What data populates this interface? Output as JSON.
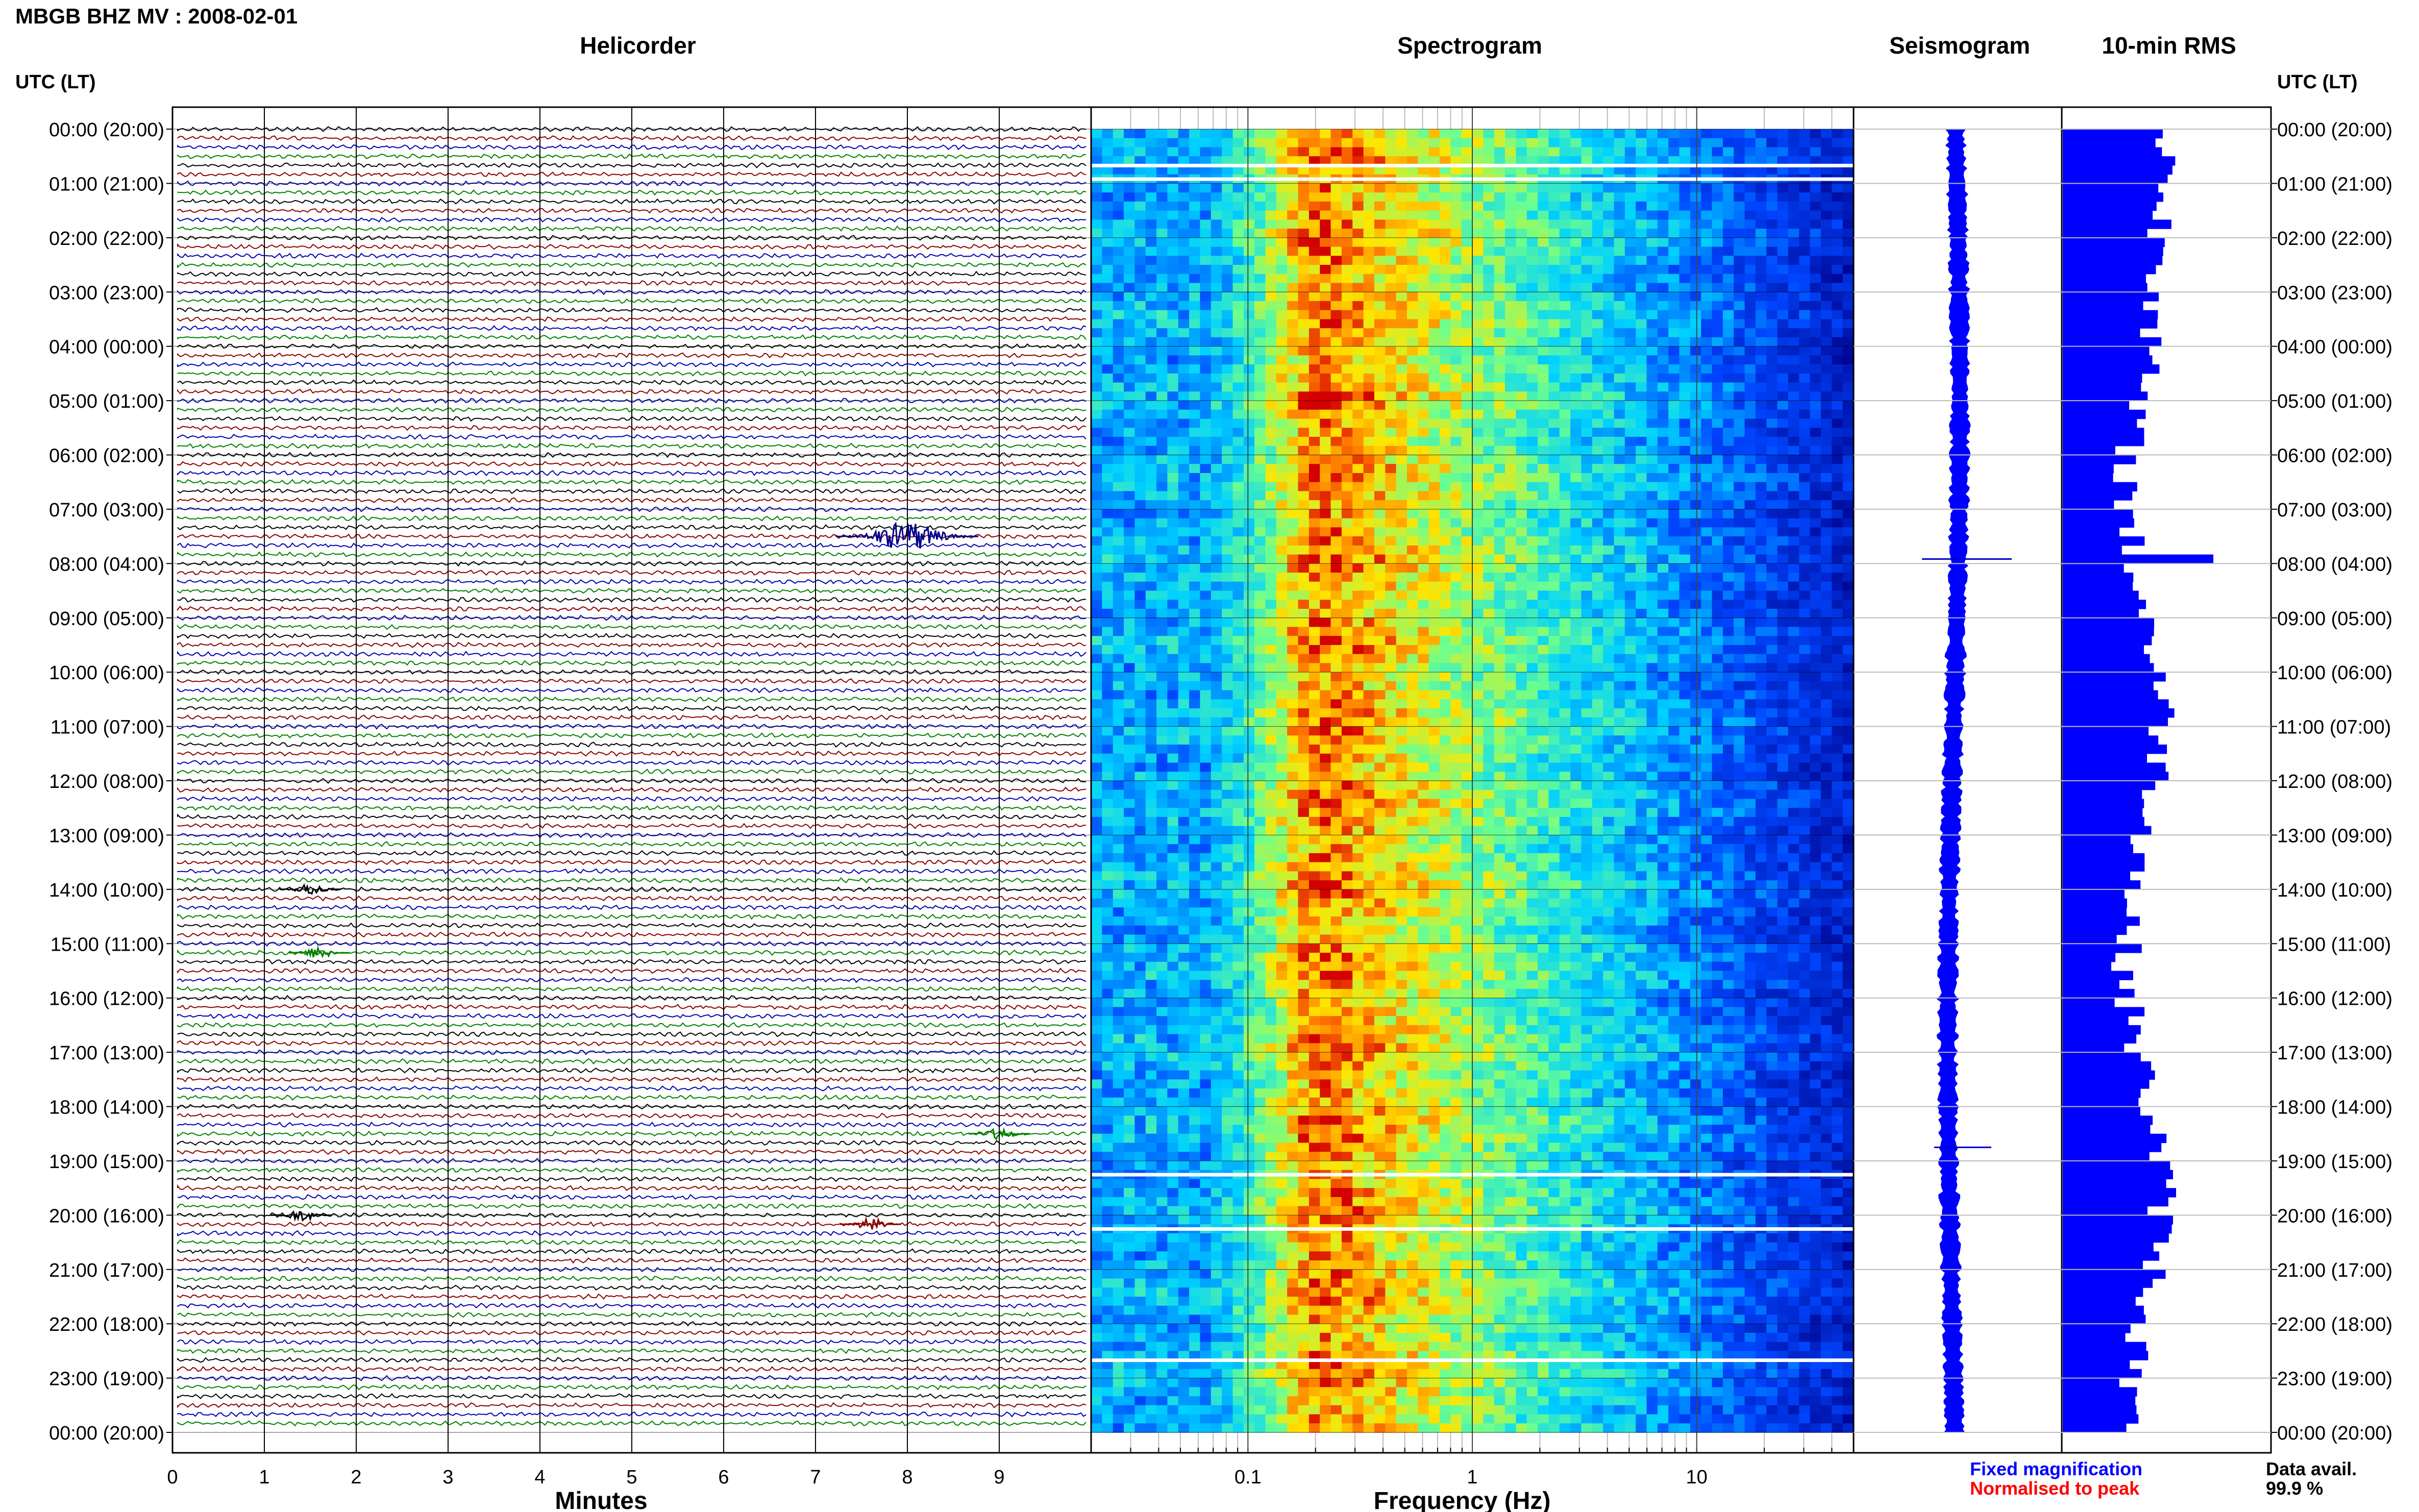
{
  "title": "MBGB BHZ MV : 2008-02-01",
  "chart_data": [
    {
      "type": "line",
      "title": "Helicorder",
      "xlabel": "Minutes",
      "ylabel": "UTC (LT)",
      "x_ticks": [
        "0",
        "1",
        "2",
        "3",
        "4",
        "5",
        "6",
        "7",
        "8",
        "9"
      ],
      "xlim": [
        0,
        10
      ],
      "row_minutes": 10,
      "trace_colors": [
        "#000000",
        "#8b0000",
        "#0000b4",
        "#008000"
      ],
      "events": [
        {
          "time_utc": "07:30",
          "minute": 8.0,
          "description_color": "#00008b"
        },
        {
          "time_utc": "14:00",
          "minute": 1.5
        },
        {
          "time_utc": "15:10",
          "minute": 1.6
        },
        {
          "time_utc": "18:30",
          "minute": 9.0
        },
        {
          "time_utc": "20:10",
          "minute": 7.6
        },
        {
          "time_utc": "20:00",
          "minute": 1.4
        }
      ]
    },
    {
      "type": "heatmap",
      "title": "Spectrogram",
      "xlabel": "Frequency (Hz)",
      "x_scale": "log",
      "xlim": [
        0.02,
        50
      ],
      "x_ticks": [
        "0.1",
        "1",
        "10"
      ],
      "peak_band_hz": [
        0.15,
        0.35
      ],
      "gaps_utc": [
        "00:40",
        "00:55",
        "19:15",
        "20:15",
        "22:40"
      ]
    },
    {
      "type": "line",
      "title": "Seismogram",
      "events_utc": [
        "07:55",
        "18:45"
      ]
    },
    {
      "type": "bar",
      "title": "10-min RMS",
      "orientation": "horizontal",
      "peak_utc": "07:50"
    }
  ],
  "y_ticks": [
    "00:00 (20:00)",
    "01:00 (21:00)",
    "02:00 (22:00)",
    "03:00 (23:00)",
    "04:00 (00:00)",
    "05:00 (01:00)",
    "06:00 (02:00)",
    "07:00 (03:00)",
    "08:00 (04:00)",
    "09:00 (05:00)",
    "10:00 (06:00)",
    "11:00 (07:00)",
    "12:00 (08:00)",
    "13:00 (09:00)",
    "14:00 (10:00)",
    "15:00 (11:00)",
    "16:00 (12:00)",
    "17:00 (13:00)",
    "18:00 (14:00)",
    "19:00 (15:00)",
    "20:00 (16:00)",
    "21:00 (17:00)",
    "22:00 (18:00)",
    "23:00 (19:00)",
    "00:00 (20:00)"
  ],
  "y_axis_label": "UTC (LT)",
  "legend": {
    "fixed": "Fixed magnification",
    "normalised": "Normalised to peak",
    "fixed_color": "#0000ff",
    "normalised_color": "#ff0000",
    "data_avail_label": "Data avail.",
    "data_avail_value": "99.9 %"
  }
}
